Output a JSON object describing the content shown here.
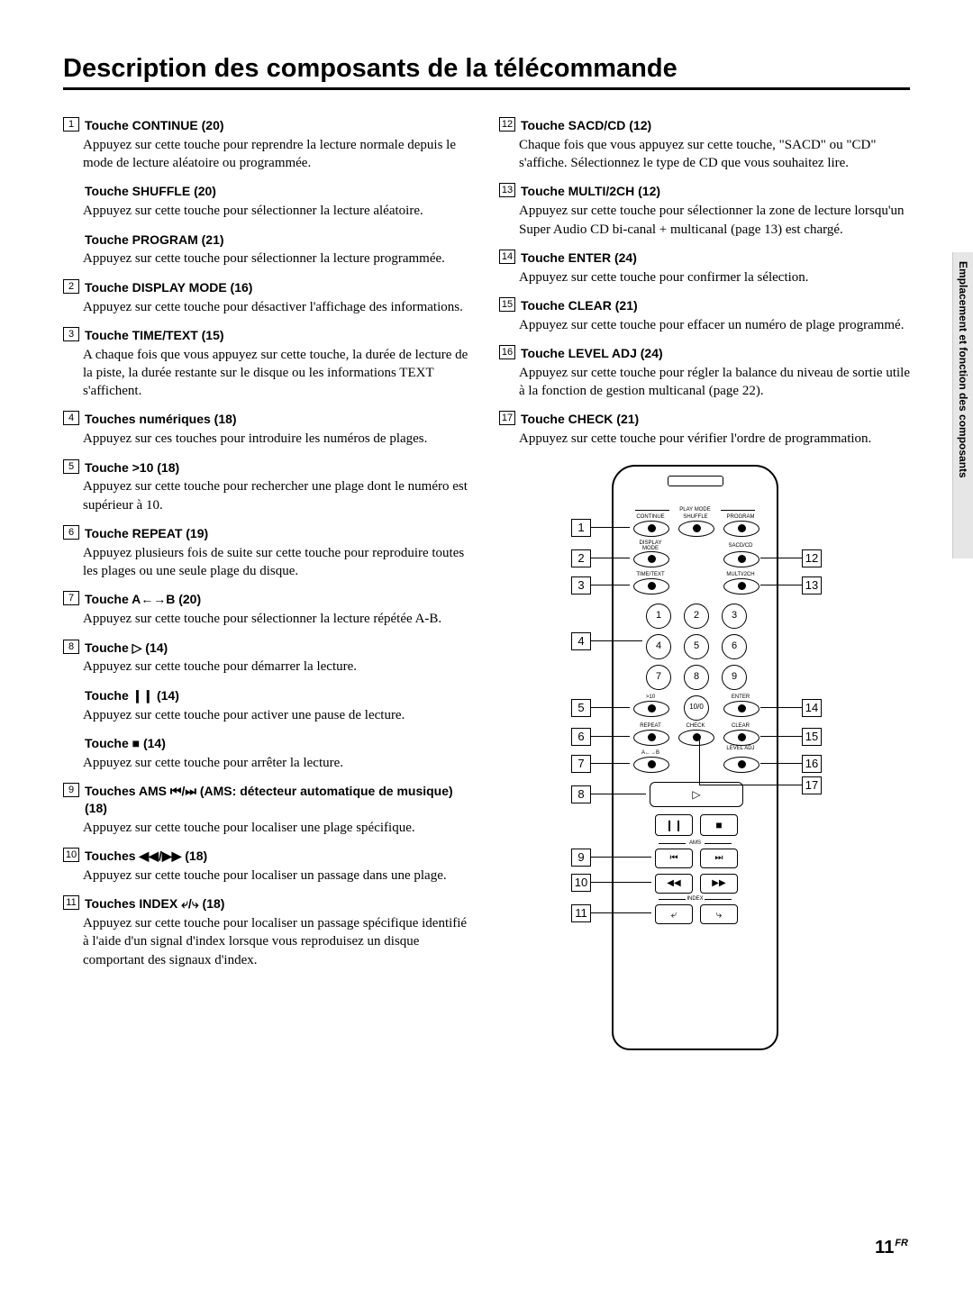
{
  "title": "Description des composants de la télécommande",
  "sideTab": "Emplacement et fonction des composants",
  "pageNumber": "11",
  "pageLang": "FR",
  "leftColumn": [
    {
      "num": "1",
      "title": "Touche CONTINUE (20)",
      "desc": "Appuyez sur cette touche pour reprendre la lecture normale depuis le mode de lecture aléatoire ou programmée."
    },
    {
      "num": "",
      "title": "Touche SHUFFLE (20)",
      "desc": "Appuyez sur cette touche pour sélectionner la lecture aléatoire."
    },
    {
      "num": "",
      "title": "Touche PROGRAM (21)",
      "desc": "Appuyez sur cette touche pour sélectionner la lecture programmée."
    },
    {
      "num": "2",
      "title": "Touche DISPLAY MODE (16)",
      "desc": "Appuyez sur cette touche pour désactiver l'affichage des informations."
    },
    {
      "num": "3",
      "title": "Touche TIME/TEXT (15)",
      "desc": "A chaque fois que vous appuyez sur cette touche, la durée de lecture de la piste, la durée restante sur le disque ou les informations TEXT s'affichent."
    },
    {
      "num": "4",
      "title": "Touches numériques (18)",
      "desc": "Appuyez sur ces touches pour introduire les numéros de plages."
    },
    {
      "num": "5",
      "title": "Touche >10 (18)",
      "desc": "Appuyez sur cette touche pour rechercher une plage dont le numéro est supérieur à 10."
    },
    {
      "num": "6",
      "title": "Touche REPEAT (19)",
      "desc": "Appuyez plusieurs fois de suite sur cette touche pour reproduire toutes les plages ou une seule plage du disque."
    },
    {
      "num": "7",
      "title": "Touche A←→B (20)",
      "desc": "Appuyez sur cette touche pour sélectionner la lecture répétée A-B."
    },
    {
      "num": "8",
      "title": "Touche ▷ (14)",
      "desc": "Appuyez sur cette touche pour démarrer la lecture."
    },
    {
      "num": "",
      "title": "Touche ❙❙ (14)",
      "desc": "Appuyez sur cette touche pour activer une pause de lecture."
    },
    {
      "num": "",
      "title": "Touche ■ (14)",
      "desc": "Appuyez sur cette touche pour arrêter la lecture."
    },
    {
      "num": "9",
      "title": "Touches AMS ⏮/⏭ (AMS: détecteur automatique de musique) (18)",
      "desc": "Appuyez sur cette touche pour localiser une plage spécifique."
    },
    {
      "num": "10",
      "title": "Touches ◀◀/▶▶ (18)",
      "desc": "Appuyez sur cette touche pour localiser un passage dans une plage."
    },
    {
      "num": "11",
      "title": "Touches INDEX ⤶/⤷ (18)",
      "desc": "Appuyez sur cette touche pour localiser un passage spécifique identifié à l'aide d'un signal d'index lorsque vous reproduisez un disque comportant des signaux d'index."
    }
  ],
  "rightColumn": [
    {
      "num": "12",
      "title": "Touche SACD/CD (12)",
      "desc": "Chaque fois que vous appuyez sur cette touche, \"SACD\" ou \"CD\" s'affiche. Sélectionnez le type de CD que vous souhaitez lire."
    },
    {
      "num": "13",
      "title": "Touche MULTI/2CH (12)",
      "desc": "Appuyez sur cette touche pour sélectionner la zone de lecture lorsqu'un Super Audio CD bi-canal + multicanal (page 13) est chargé."
    },
    {
      "num": "14",
      "title": "Touche ENTER (24)",
      "desc": "Appuyez sur cette touche pour confirmer la sélection."
    },
    {
      "num": "15",
      "title": "Touche CLEAR (21)",
      "desc": "Appuyez sur cette touche pour effacer un numéro de plage programmé."
    },
    {
      "num": "16",
      "title": "Touche LEVEL ADJ (24)",
      "desc": "Appuyez sur cette touche pour régler la balance du niveau de sortie utile à la fonction de gestion multicanal (page 22)."
    },
    {
      "num": "17",
      "title": "Touche CHECK (21)",
      "desc": "Appuyez sur cette touche pour vérifier l'ordre de programmation."
    }
  ],
  "remote": {
    "playModeLabel": "PLAY MODE",
    "rows": {
      "r1": [
        "CONTINUE",
        "SHUFFLE",
        "PROGRAM"
      ],
      "r2": [
        "DISPLAY\nMODE",
        "SACD/CD"
      ],
      "r3": [
        "TIME/TEXT",
        "MULTI/2CH"
      ],
      "bottomGt10": ">10",
      "enter": "ENTER",
      "repeat": "REPEAT",
      "check": "CHECK",
      "clear": "CLEAR",
      "ab": "A←→B",
      "levelAdj": "LEVEL\nADJ",
      "ams": "AMS",
      "index": "INDEX"
    }
  },
  "calloutsLeft": [
    1,
    2,
    3,
    4,
    5,
    6,
    7,
    8,
    9,
    10,
    11
  ],
  "calloutsRight": [
    12,
    13,
    14,
    15,
    16,
    17
  ]
}
